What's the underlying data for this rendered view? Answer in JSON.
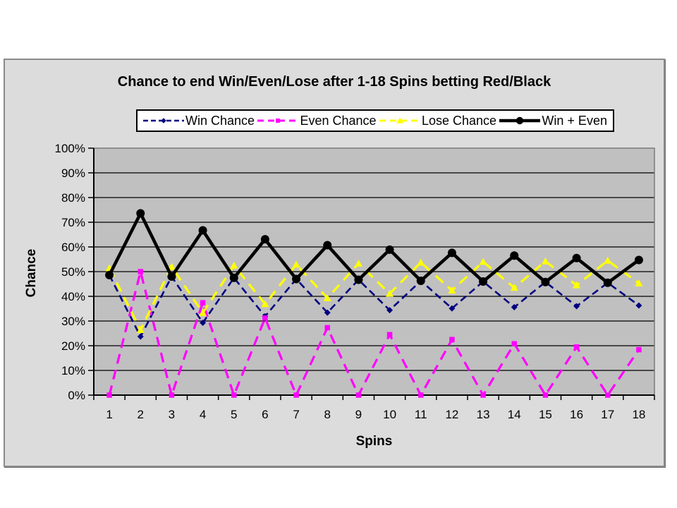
{
  "chart_data": {
    "type": "line",
    "title": "Chance to end Win/Even/Lose after 1-18 Spins betting Red/Black",
    "xlabel": "Spins",
    "ylabel": "Chance",
    "ylim": [
      0,
      100
    ],
    "y_ticks": [
      "0%",
      "10%",
      "20%",
      "30%",
      "40%",
      "50%",
      "60%",
      "70%",
      "80%",
      "90%",
      "100%"
    ],
    "grid": "horizontal",
    "legend_position": "top",
    "plot_bg_color": "#c0c0c0",
    "chart_bg_color": "#dcdcdc",
    "categories": [
      1,
      2,
      3,
      4,
      5,
      6,
      7,
      8,
      9,
      10,
      11,
      12,
      13,
      14,
      15,
      16,
      17,
      18
    ],
    "series": [
      {
        "name": "Win Chance",
        "color": "#000080",
        "line": "dashed",
        "marker": "diamond",
        "values": [
          48.6,
          23.7,
          48.0,
          29.3,
          47.5,
          31.9,
          47.0,
          33.4,
          46.7,
          34.4,
          46.3,
          35.1,
          46.0,
          35.6,
          45.8,
          36.0,
          45.5,
          36.3
        ]
      },
      {
        "name": "Even Chance",
        "color": "#ff00ff",
        "line": "dashed",
        "marker": "square",
        "values": [
          0.0,
          50.0,
          0.0,
          37.4,
          0.0,
          31.2,
          0.0,
          27.3,
          0.0,
          24.5,
          0.0,
          22.5,
          0.0,
          20.8,
          0.0,
          19.5,
          0.0,
          18.4
        ]
      },
      {
        "name": "Lose Chance",
        "color": "#ffff00",
        "line": "dashed",
        "marker": "triangle",
        "values": [
          51.4,
          26.4,
          52.0,
          33.3,
          52.5,
          36.9,
          52.9,
          39.3,
          53.3,
          41.1,
          53.7,
          42.4,
          54.0,
          43.5,
          54.2,
          44.5,
          54.5,
          45.3
        ]
      },
      {
        "name": "Win + Even",
        "color": "#000000",
        "line": "solid",
        "marker": "circle",
        "values": [
          48.6,
          73.6,
          48.0,
          66.7,
          47.5,
          63.1,
          47.0,
          60.7,
          46.7,
          58.9,
          46.3,
          57.6,
          46.0,
          56.5,
          45.8,
          55.5,
          45.5,
          54.7
        ]
      }
    ]
  }
}
